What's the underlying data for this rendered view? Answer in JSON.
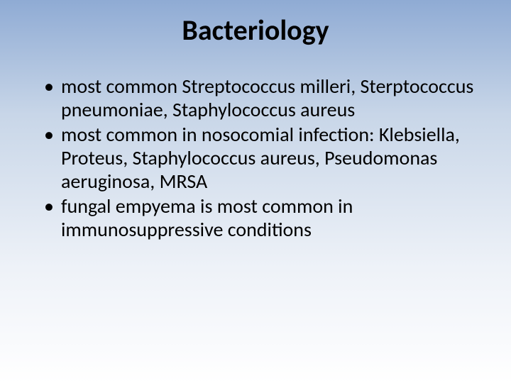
{
  "slide": {
    "title": "Bacteriology",
    "title_fontsize": 40,
    "title_color": "#000000",
    "body_fontsize": 28,
    "body_color": "#000000",
    "background_gradient": {
      "top": "#8fabd4",
      "mid1": "#c8d6e8",
      "mid2": "#eef2f8",
      "bottom": "#ffffff"
    },
    "bullets": [
      "most common Streptococcus milleri, Sterptococcus pneumoniae, Staphylococcus aureus",
      "most common in nosocomial infection: Klebsiella, Proteus, Staphylococcus aureus, Pseudomonas aeruginosa, MRSA",
      "fungal empyema is most common in immunosuppressive conditions"
    ]
  }
}
